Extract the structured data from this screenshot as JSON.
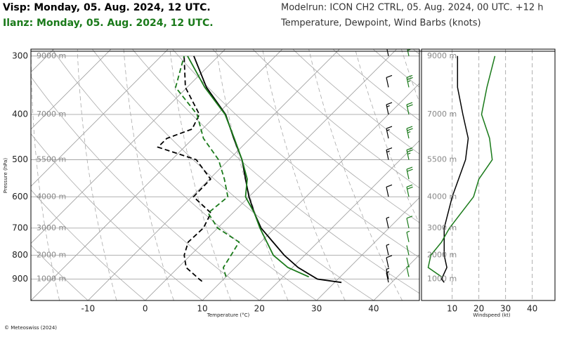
{
  "header": {
    "visp": "Visp: Monday, 05. Aug. 2024, 12 UTC.",
    "ilanz": "Ilanz: Monday, 05. Aug. 2024, 12 UTC.",
    "modelrun": "Modelrun: ICON CH2 CTRL, 05. Aug. 2024, 00 UTC. +12 h",
    "subtitle": "Temperature, Dewpoint, Wind Barbs (knots)"
  },
  "footer": "© Meteoswiss (2024)",
  "chart_data": [
    {
      "type": "skewt",
      "ylabel": "Pressure (hPa)",
      "xlabel": "Temperature (°C)",
      "ylim": [
        1000,
        290
      ],
      "yticks": [
        300,
        400,
        500,
        600,
        700,
        800,
        900
      ],
      "log_y": true,
      "xlim": [
        -20,
        48
      ],
      "xticks": [
        -10,
        0,
        10,
        20,
        30,
        40
      ],
      "height_labels": [
        "9000 m",
        "7000 m",
        "5500 m",
        "4000 m",
        "3000 m",
        "2000 m",
        "1000 m"
      ],
      "series": [
        {
          "color": "#000000",
          "style": "solid",
          "pressure": [
            915,
            900,
            850,
            800,
            700,
            650,
            600,
            550,
            500,
            450,
            400,
            350,
            300
          ],
          "values": [
            31.2,
            26.4,
            21,
            16.4,
            7.6,
            3.8,
            0,
            -3.7,
            -7.7,
            -12.9,
            -18.5,
            -26.6,
            -34.3
          ]
        },
        {
          "color": "#000000",
          "style": "dashed",
          "pressure": [
            910,
            900,
            850,
            800,
            750,
            700,
            650,
            600,
            550,
            500,
            470,
            450,
            430,
            400,
            350,
            300
          ],
          "values": [
            6.6,
            5.7,
            1.4,
            -1.1,
            -2.7,
            -2.5,
            -3.8,
            -9.7,
            -9.8,
            -15.7,
            -24.6,
            -24.6,
            -21.8,
            -23.1,
            -30.3,
            -36
          ]
        },
        {
          "color": "#1a7a1a",
          "style": "solid",
          "pressure": [
            890,
            850,
            800,
            700,
            650,
            600,
            550,
            500,
            450,
            400,
            350,
            300
          ],
          "values": [
            24.5,
            19.2,
            14.5,
            7.4,
            3.8,
            -0.6,
            -3.4,
            -7.7,
            -12.8,
            -18.6,
            -26.9,
            -35.4
          ]
        },
        {
          "color": "#1a7a1a",
          "style": "dashed",
          "pressure": [
            890,
            850,
            800,
            750,
            700,
            650,
            600,
            550,
            500,
            450,
            400,
            350,
            300
          ],
          "values": [
            10,
            7.9,
            7.1,
            6.2,
            0,
            -4.3,
            -3.7,
            -7.4,
            -11.8,
            -18.2,
            -23.5,
            -32,
            -36
          ]
        }
      ]
    },
    {
      "type": "profile",
      "xlabel": "Windspeed (kt)",
      "ylim": [
        1000,
        290
      ],
      "log_y": true,
      "xlim": [
        -1.5,
        48.5
      ],
      "xticks": [
        10,
        20,
        30,
        40
      ],
      "height_labels": [
        "9000 m",
        "7000 m",
        "5500 m",
        "4000 m",
        "3000 m",
        "2000 m",
        "1000 m"
      ],
      "series": [
        {
          "color": "#000000",
          "pressure": [
            915,
            900,
            850,
            800,
            700,
            600,
            500,
            450,
            400,
            350,
            300
          ],
          "values": [
            7,
            6,
            8,
            7,
            7,
            10,
            15,
            16,
            14,
            12,
            12
          ]
        },
        {
          "color": "#1a7a1a",
          "pressure": [
            890,
            850,
            800,
            750,
            700,
            600,
            550,
            500,
            450,
            400,
            350,
            300
          ],
          "values": [
            6,
            1,
            2,
            6,
            9,
            18,
            20,
            25,
            24,
            21,
            23,
            26
          ]
        }
      ]
    }
  ]
}
